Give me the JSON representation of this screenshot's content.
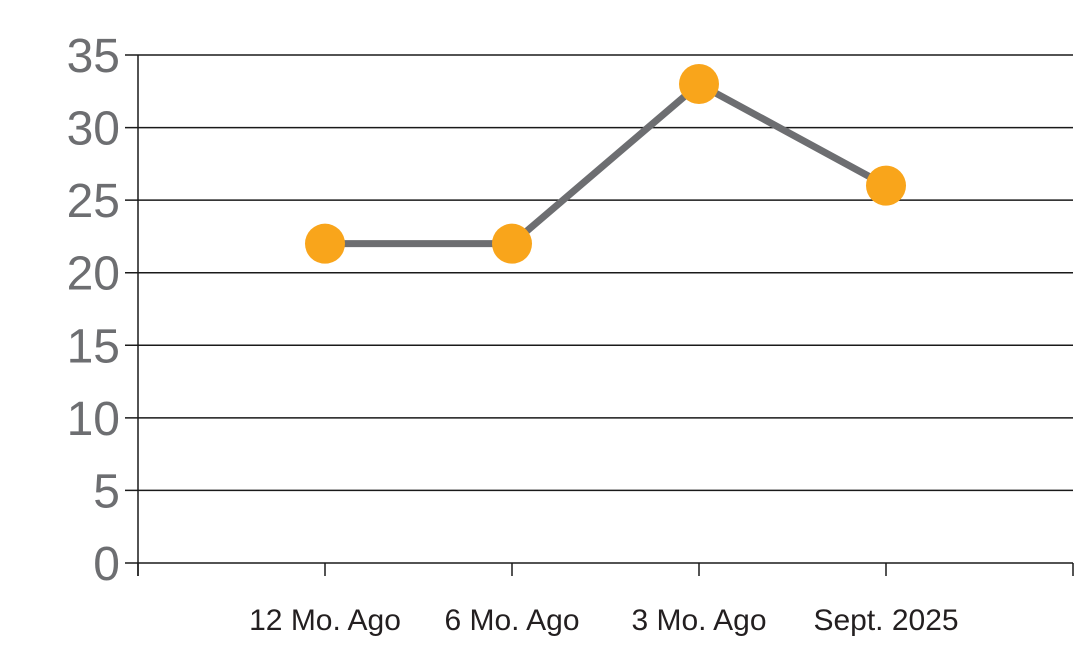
{
  "chart_data": {
    "type": "line",
    "title": "",
    "xlabel": "",
    "ylabel": "",
    "categories": [
      "12 Mo. Ago",
      "6 Mo. Ago",
      "3 Mo. Ago",
      "Sept. 2025"
    ],
    "values": [
      22,
      22,
      33,
      26
    ],
    "ylim": [
      0,
      35
    ],
    "yticks": [
      0,
      5,
      10,
      15,
      20,
      25,
      30,
      35
    ],
    "grid": true,
    "legend": false,
    "marker_shape": "circle",
    "colors": {
      "marker": "#F9A51B",
      "line": "#6D6E71",
      "grid": "#1a1a1a",
      "axis": "#1a1a1a",
      "ytick_label": "#6D6E71",
      "xtick_label": "#231F20",
      "background": "#FFFFFF"
    }
  }
}
